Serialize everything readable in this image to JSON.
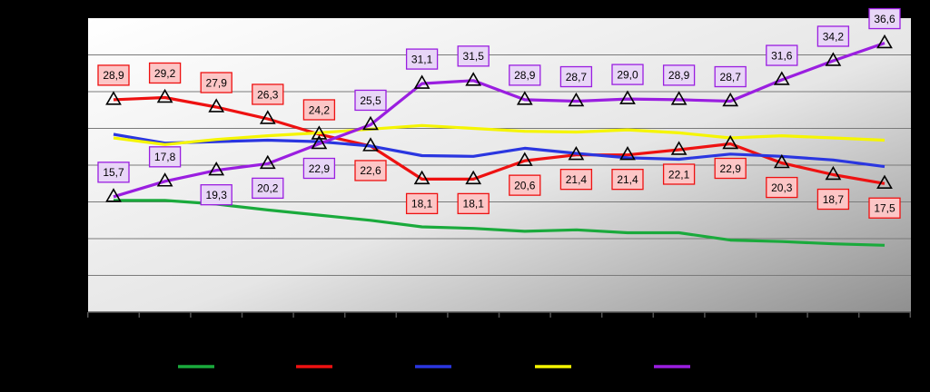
{
  "chart_data": {
    "type": "line",
    "title": "",
    "xlabel": "",
    "ylabel": "",
    "ylim": [
      0,
      40
    ],
    "grid": true,
    "legend_position": "bottom",
    "x": [
      1,
      2,
      3,
      4,
      5,
      6,
      7,
      8,
      9,
      10,
      11,
      12,
      13,
      14,
      15,
      16
    ],
    "series": [
      {
        "name": "",
        "color": "#1aaa3c",
        "values": [
          15.2,
          15.2,
          14.7,
          13.9,
          13.2,
          12.5,
          11.6,
          11.4,
          11.0,
          11.2,
          10.8,
          10.8,
          9.8,
          9.6,
          9.3,
          9.1
        ]
      },
      {
        "name": "",
        "color": "#ee1111",
        "marker": "triangle",
        "values": [
          28.9,
          29.2,
          27.9,
          26.3,
          24.2,
          22.6,
          18.1,
          18.1,
          20.6,
          21.4,
          21.4,
          22.1,
          22.9,
          20.3,
          18.7,
          17.5
        ],
        "labels": [
          "28,9",
          "29,2",
          "27,9",
          "26,3",
          "24,2",
          "22,6",
          "18,1",
          "18,1",
          "20,6",
          "21,4",
          "21,4",
          "22,1",
          "22,9",
          "20,3",
          "18,7",
          "17,5"
        ],
        "label_pos": [
          "above",
          "above",
          "above",
          "above",
          "above",
          "below",
          "below",
          "below",
          "below",
          "below",
          "below",
          "below",
          "below",
          "below",
          "below",
          "below"
        ]
      },
      {
        "name": "",
        "color": "#2a36e0",
        "values": [
          24.2,
          23.0,
          23.2,
          23.4,
          23.2,
          22.6,
          21.3,
          21.2,
          22.3,
          21.6,
          21.0,
          20.8,
          21.5,
          21.2,
          20.7,
          19.8
        ]
      },
      {
        "name": "",
        "color": "#f5f500",
        "values": [
          23.7,
          22.8,
          23.5,
          24.0,
          24.4,
          24.9,
          25.4,
          25.0,
          24.6,
          24.5,
          24.8,
          24.4,
          23.7,
          24.0,
          23.7,
          23.4
        ]
      },
      {
        "name": "",
        "color": "#9a1ee0",
        "marker": "triangle",
        "values": [
          15.7,
          17.8,
          19.3,
          20.2,
          22.9,
          25.5,
          31.1,
          31.5,
          28.9,
          28.7,
          29.0,
          28.9,
          28.7,
          31.6,
          34.2,
          36.6
        ],
        "labels": [
          "15,7",
          "17,8",
          "19,3",
          "20,2",
          "22,9",
          "25,5",
          "31,1",
          "31,5",
          "28,9",
          "28,7",
          "29,0",
          "28,9",
          "28,7",
          "31,6",
          "34,2",
          "36,6"
        ],
        "label_pos": [
          "above",
          "above",
          "below",
          "below",
          "below",
          "above",
          "above",
          "above",
          "above",
          "above",
          "above",
          "above",
          "above",
          "above",
          "above",
          "above"
        ]
      }
    ]
  }
}
